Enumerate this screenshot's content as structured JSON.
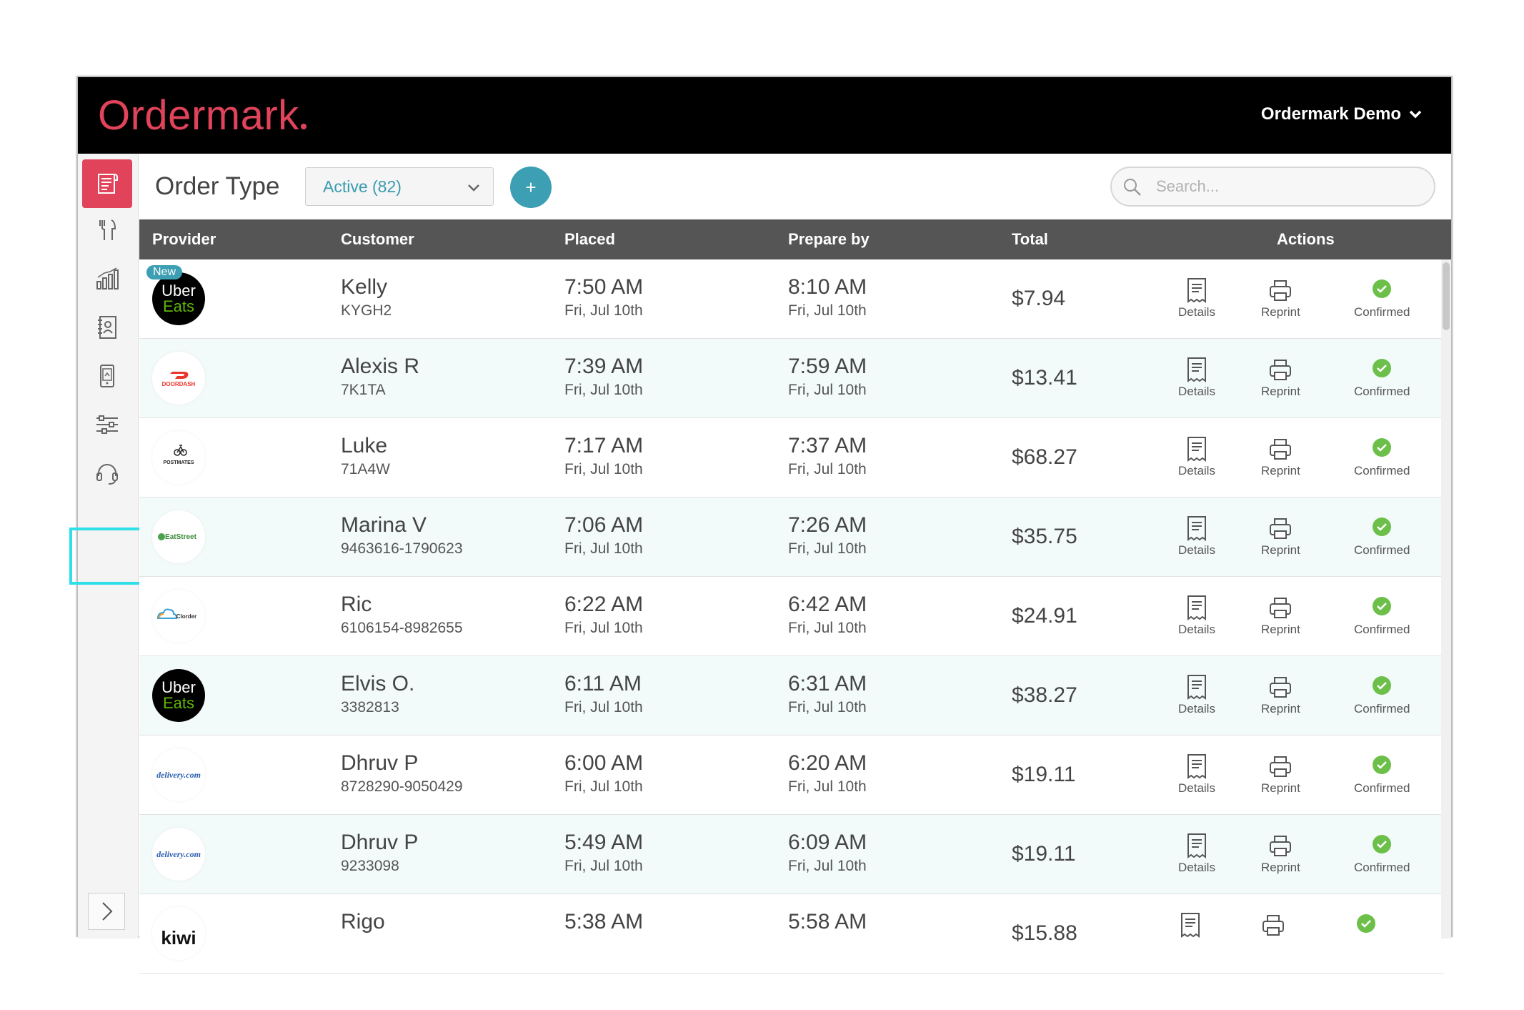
{
  "app": {
    "brand": "Ordermark",
    "account_label": "Ordermark Demo"
  },
  "toolbar": {
    "title": "Order Type",
    "filter_value": "Active (82)",
    "add_label": "+",
    "search_placeholder": "Search..."
  },
  "table": {
    "headers": {
      "provider": "Provider",
      "customer": "Customer",
      "placed": "Placed",
      "prepare_by": "Prepare by",
      "total": "Total",
      "actions": "Actions"
    },
    "action_labels": {
      "details": "Details",
      "reprint": "Reprint",
      "confirmed": "Confirmed"
    },
    "rows": [
      {
        "provider": "Uber Eats",
        "new_badge": "New",
        "name": "Kelly",
        "id": "KYGH2",
        "placed_time": "7:50 AM",
        "placed_date": "Fri, Jul 10th",
        "prep_time": "8:10 AM",
        "prep_date": "Fri, Jul 10th",
        "total": "$7.94"
      },
      {
        "provider": "DOORDASH",
        "name": "Alexis R",
        "id": "7K1TA",
        "placed_time": "7:39 AM",
        "placed_date": "Fri, Jul 10th",
        "prep_time": "7:59 AM",
        "prep_date": "Fri, Jul 10th",
        "total": "$13.41"
      },
      {
        "provider": "POSTMATES",
        "name": "Luke",
        "id": "71A4W",
        "placed_time": "7:17 AM",
        "placed_date": "Fri, Jul 10th",
        "prep_time": "7:37 AM",
        "prep_date": "Fri, Jul 10th",
        "total": "$68.27"
      },
      {
        "provider": "EatStreet",
        "name": "Marina V",
        "id": "9463616-1790623",
        "placed_time": "7:06 AM",
        "placed_date": "Fri, Jul 10th",
        "prep_time": "7:26 AM",
        "prep_date": "Fri, Jul 10th",
        "total": "$35.75"
      },
      {
        "provider": "Clorder",
        "name": "Ric",
        "id": "6106154-8982655",
        "placed_time": "6:22 AM",
        "placed_date": "Fri, Jul 10th",
        "prep_time": "6:42 AM",
        "prep_date": "Fri, Jul 10th",
        "total": "$24.91"
      },
      {
        "provider": "Uber Eats",
        "name": "Elvis O.",
        "id": "3382813",
        "placed_time": "6:11 AM",
        "placed_date": "Fri, Jul 10th",
        "prep_time": "6:31 AM",
        "prep_date": "Fri, Jul 10th",
        "total": "$38.27"
      },
      {
        "provider": "delivery.com",
        "name": "Dhruv P",
        "id": "8728290-9050429",
        "placed_time": "6:00 AM",
        "placed_date": "Fri, Jul 10th",
        "prep_time": "6:20 AM",
        "prep_date": "Fri, Jul 10th",
        "total": "$19.11"
      },
      {
        "provider": "delivery.com",
        "name": "Dhruv P",
        "id": "9233098",
        "placed_time": "5:49 AM",
        "placed_date": "Fri, Jul 10th",
        "prep_time": "6:09 AM",
        "prep_date": "Fri, Jul 10th",
        "total": "$19.11"
      },
      {
        "provider": "kiwi",
        "name": "Rigo",
        "id": "",
        "placed_time": "5:38 AM",
        "placed_date": "",
        "prep_time": "5:58 AM",
        "prep_date": "",
        "total": "$15.88"
      }
    ]
  },
  "sidebar": {
    "items": [
      "orders-icon",
      "menu-icon",
      "analytics-icon",
      "contacts-icon",
      "tablet-icon",
      "settings-sliders-icon",
      "support-headset-icon"
    ]
  },
  "colors": {
    "brand_red": "#e0435a",
    "accent_teal": "#3c9fb3",
    "confirm_green": "#6cc04a",
    "header_gray": "#555556"
  }
}
